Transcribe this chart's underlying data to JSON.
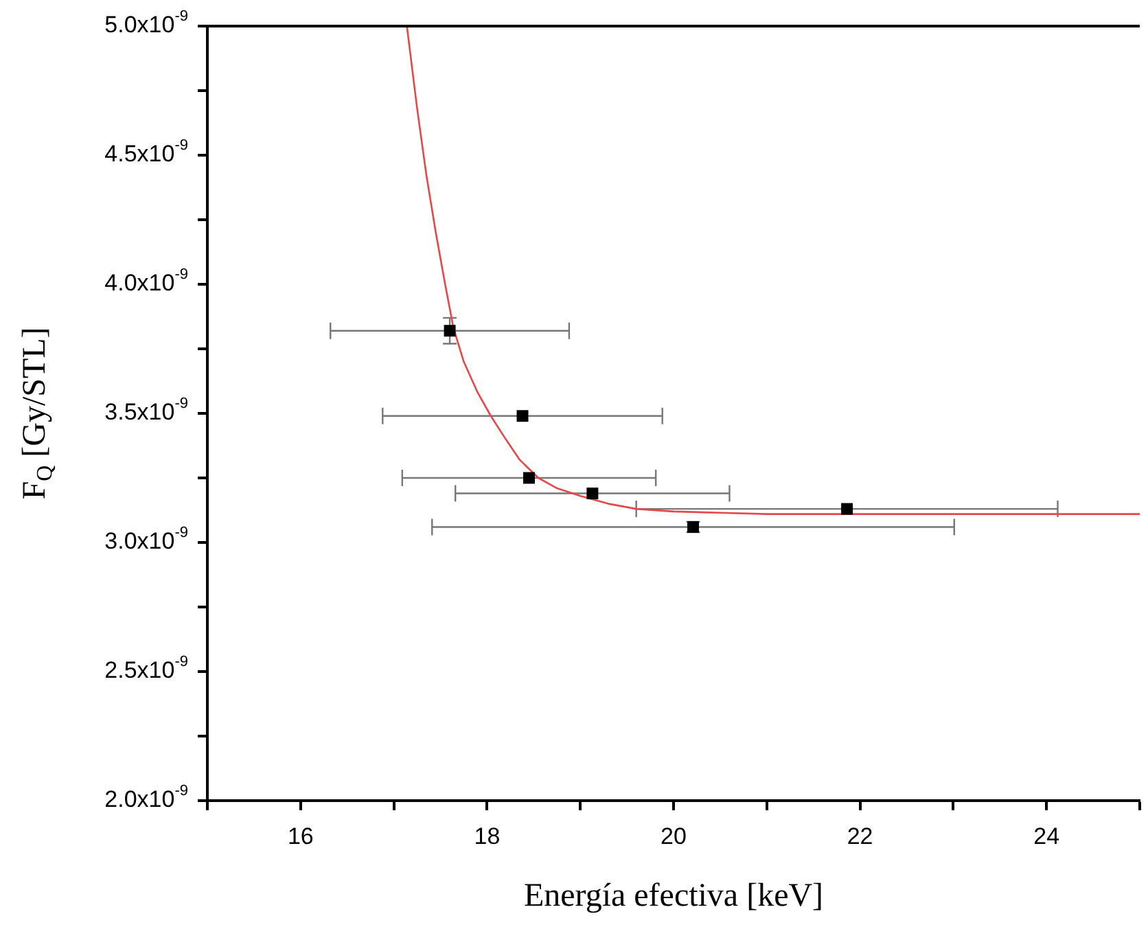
{
  "chart_data": {
    "type": "scatter",
    "xlabel": "Energía efectiva [keV]",
    "ylabel": "F$_{Q}$ [Gy/STL]",
    "xlim": [
      15,
      25
    ],
    "xticks": [
      {
        "value": 15,
        "label": null
      },
      16,
      {
        "value": 17,
        "label": null
      },
      18,
      {
        "value": 19,
        "label": null
      },
      20,
      {
        "value": 21,
        "label": null
      },
      22,
      {
        "value": 23,
        "label": null
      },
      24,
      {
        "value": 25,
        "label": null
      }
    ],
    "ylim": [
      2e-09,
      5e-09
    ],
    "yticks": [
      {
        "value": 2e-09,
        "label": "2.0x10$^{-9}$"
      },
      {
        "value": 2.25e-09,
        "label": null
      },
      {
        "value": 2.5e-09,
        "label": "2.5x10$^{-9}$"
      },
      {
        "value": 2.75e-09,
        "label": null
      },
      {
        "value": 3e-09,
        "label": "3.0x10$^{-9}$"
      },
      {
        "value": 3.25e-09,
        "label": null
      },
      {
        "value": 3.5e-09,
        "label": "3.5x10$^{-9}$"
      },
      {
        "value": 3.75e-09,
        "label": null
      },
      {
        "value": 4e-09,
        "label": "4.0x10$^{-9}$"
      },
      {
        "value": 4.25e-09,
        "label": null
      },
      {
        "value": 4.5e-09,
        "label": "4.5x10$^{-9}$"
      },
      {
        "value": 4.75e-09,
        "label": null
      },
      {
        "value": 5e-09,
        "label": "5.0x10$^{-9}$"
      }
    ],
    "grid": false,
    "legend": false,
    "series": [
      {
        "type": "scatter",
        "color": "#000000",
        "marker": "square",
        "x": [
          17.6,
          18.38,
          18.45,
          19.13,
          20.21,
          21.86
        ],
        "values": [
          3.82e-09,
          3.49e-09,
          3.25e-09,
          3.19e-09,
          3.06e-09,
          3.13e-09
        ],
        "xerrors": [
          1.28,
          1.5,
          1.36,
          1.47,
          2.8,
          2.26
        ],
        "errors": [
          5e-11,
          null,
          null,
          null,
          2e-11,
          null
        ]
      },
      {
        "type": "line",
        "color": "#e8474a",
        "marker": "none",
        "line_style": "solid",
        "x": [
          17.14,
          17.25,
          17.35,
          17.45,
          17.55,
          17.64,
          17.75,
          17.9,
          18.04,
          18.2,
          18.35,
          18.55,
          18.75,
          19.0,
          19.3,
          19.6,
          20.0,
          20.5,
          21.0,
          22.0,
          25.0
        ],
        "values": [
          5e-09,
          4.68e-09,
          4.42e-09,
          4.2e-09,
          4e-09,
          3.83e-09,
          3.7e-09,
          3.58e-09,
          3.49e-09,
          3.4e-09,
          3.32e-09,
          3.25e-09,
          3.21e-09,
          3.18e-09,
          3.15e-09,
          3.13e-09,
          3.12e-09,
          3.115e-09,
          3.11e-09,
          3.11e-09,
          3.11e-09
        ]
      }
    ]
  }
}
